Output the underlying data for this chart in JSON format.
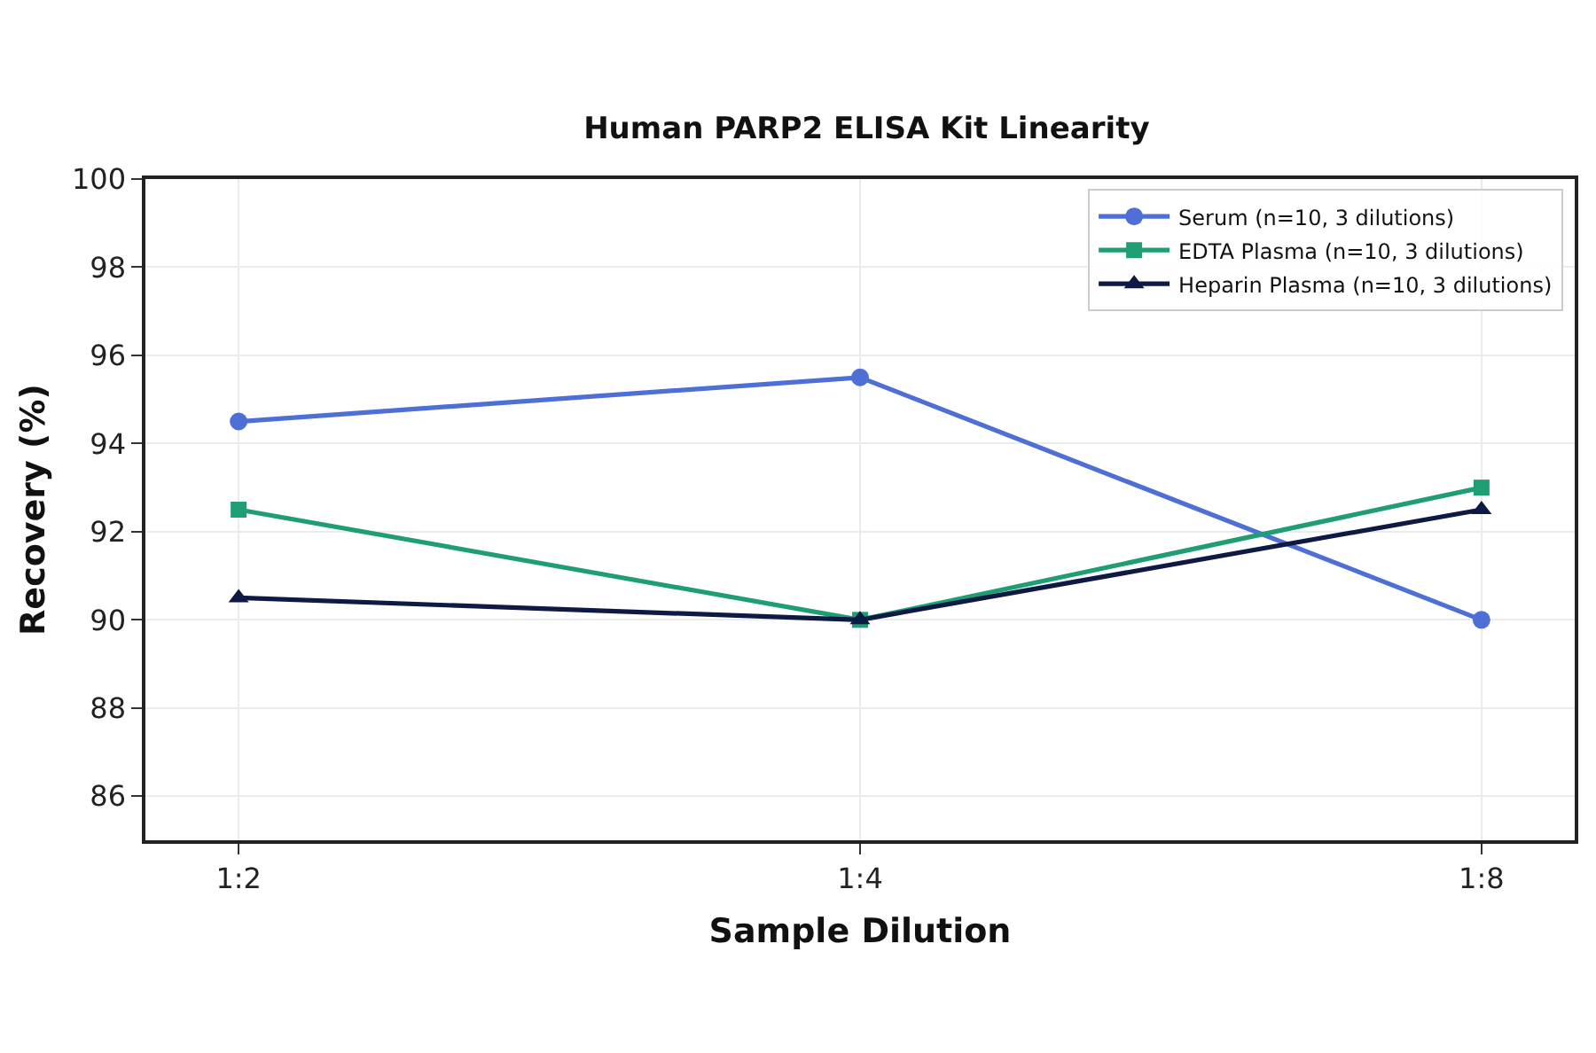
{
  "chart_data": {
    "type": "line",
    "title": "Human PARP2 ELISA Kit Linearity",
    "xlabel": "Sample Dilution",
    "ylabel": "Recovery (%)",
    "categories": [
      "1:2",
      "1:4",
      "1:8"
    ],
    "series": [
      {
        "name": "Serum (n=10, 3 dilutions)",
        "color": "#4e6fd6",
        "marker": "circle",
        "values": [
          94.5,
          95.5,
          90.0
        ]
      },
      {
        "name": "EDTA Plasma (n=10, 3 dilutions)",
        "color": "#1f9e74",
        "marker": "square",
        "values": [
          92.5,
          90.0,
          93.0
        ]
      },
      {
        "name": "Heparin Plasma (n=10, 3 dilutions)",
        "color": "#0f1a44",
        "marker": "triangle",
        "values": [
          90.5,
          90.0,
          92.5
        ]
      }
    ],
    "ylim": [
      85,
      100
    ],
    "yticks": [
      86,
      88,
      90,
      92,
      94,
      96,
      98,
      100
    ],
    "grid": true,
    "legend": "top right",
    "line_style": "solid"
  }
}
